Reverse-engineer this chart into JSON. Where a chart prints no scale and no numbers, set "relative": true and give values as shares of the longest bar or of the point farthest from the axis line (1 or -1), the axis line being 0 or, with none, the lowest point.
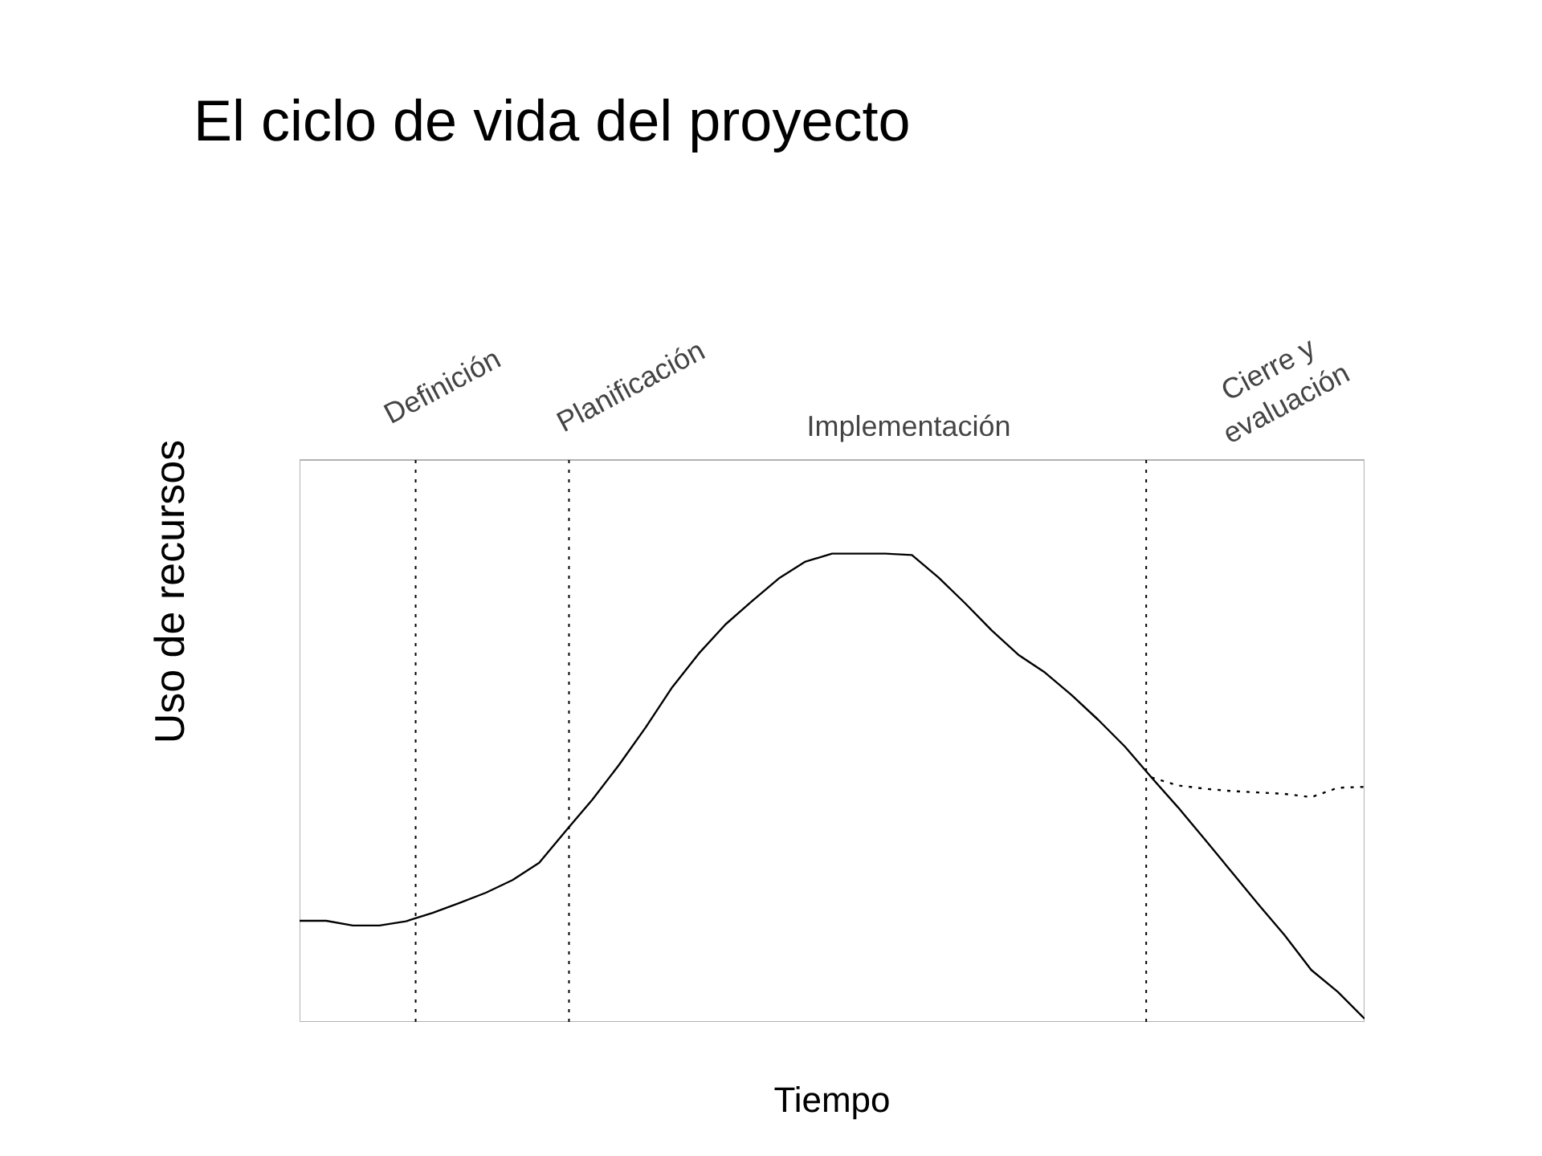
{
  "chart_data": {
    "type": "line",
    "title": "El ciclo de vida del proyecto",
    "xlabel": "Tiempo",
    "ylabel": "Uso de recursos",
    "relative": true,
    "categories": [
      null,
      null,
      null,
      null,
      null,
      null,
      null,
      null,
      null,
      null,
      null,
      null,
      null,
      null,
      null,
      null,
      null,
      null,
      null,
      null,
      null,
      null,
      null,
      null,
      null,
      null,
      null,
      null,
      null,
      null,
      null,
      null,
      null,
      null,
      null,
      null,
      null,
      null,
      null,
      null,
      null
    ],
    "series": [
      {
        "color": "#000000",
        "line_style": "solid",
        "values": [
          0.216,
          0.216,
          0.206,
          0.206,
          0.215,
          0.233,
          0.254,
          0.276,
          0.303,
          0.34,
          0.408,
          0.475,
          0.549,
          0.629,
          0.715,
          0.787,
          0.849,
          0.899,
          0.947,
          0.983,
          1.0,
          1.0,
          1.0,
          0.997,
          0.949,
          0.894,
          0.836,
          0.784,
          0.746,
          0.698,
          0.645,
          0.588,
          0.522,
          0.458,
          0.39,
          0.321,
          0.252,
          0.185,
          0.111,
          0.064,
          0.007
        ]
      },
      {
        "color": "#000000",
        "line_style": "dotted",
        "values": [
          null,
          null,
          null,
          null,
          null,
          null,
          null,
          null,
          null,
          null,
          null,
          null,
          null,
          null,
          null,
          null,
          null,
          null,
          null,
          null,
          null,
          null,
          null,
          null,
          null,
          null,
          null,
          null,
          null,
          null,
          null,
          null,
          0.522,
          0.505,
          0.498,
          0.493,
          0.49,
          0.487,
          0.48,
          0.5,
          0.502
        ]
      }
    ],
    "annotations": [
      "Definición",
      "Planificación",
      "Implementación",
      "Cierre y\nevaluación"
    ]
  }
}
